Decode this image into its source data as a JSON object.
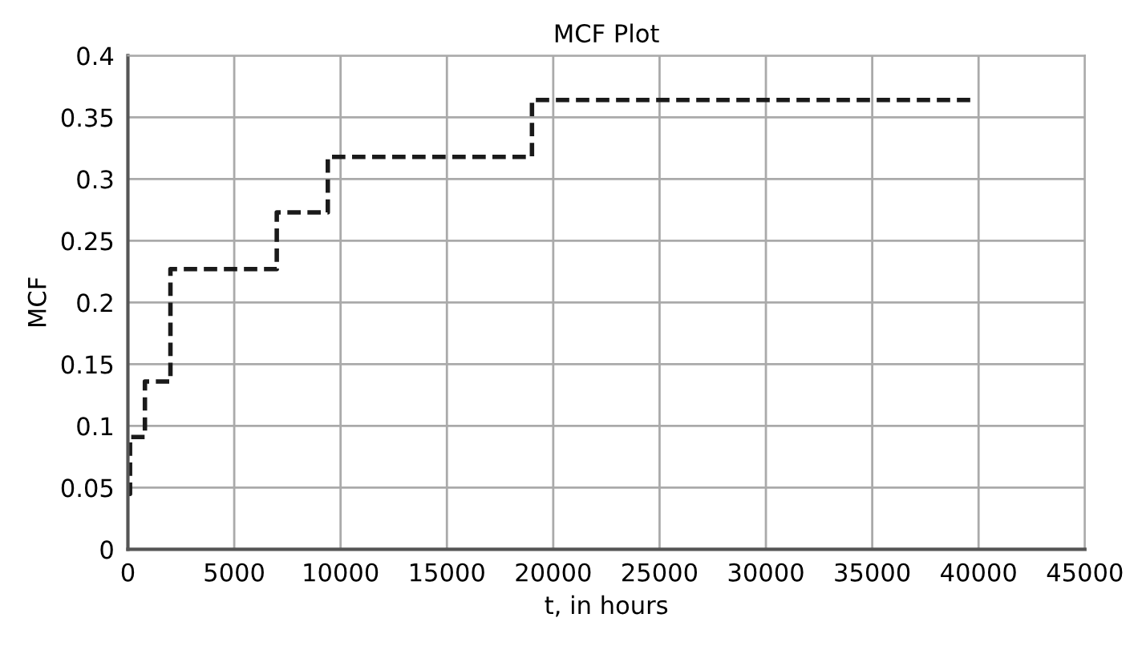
{
  "chart_data": {
    "type": "step",
    "title": "MCF Plot",
    "xlabel": "t, in hours",
    "ylabel": "MCF",
    "x": [
      0,
      100,
      800,
      2000,
      7000,
      9400,
      19000,
      39800
    ],
    "series": [
      {
        "color": "#1a1a1a",
        "values": [
          0.045,
          0.091,
          0.136,
          0.227,
          0.273,
          0.318,
          0.364,
          0.364
        ]
      }
    ],
    "xlim": [
      0,
      45000
    ],
    "xticks": [
      0,
      5000,
      10000,
      15000,
      20000,
      25000,
      30000,
      35000,
      40000,
      45000
    ],
    "ylim": [
      0,
      0.4
    ],
    "yticks": [
      0,
      0.05,
      0.1,
      0.15,
      0.2,
      0.25,
      0.3,
      0.35,
      0.4
    ],
    "grid": true,
    "line_style": "dashed",
    "marker": "none",
    "legend": false
  }
}
